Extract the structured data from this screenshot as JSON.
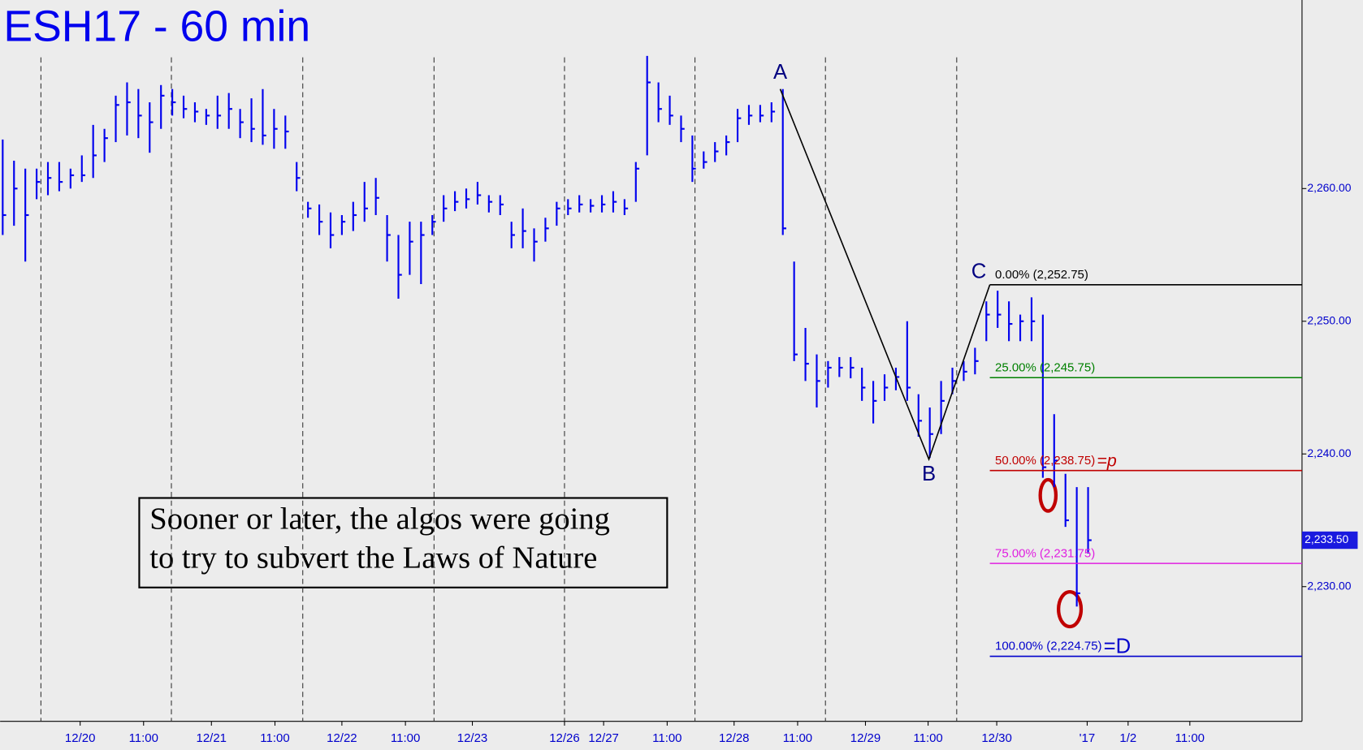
{
  "chart_data": {
    "type": "ohlc",
    "title": "ESH17 - 60 min",
    "annotation": [
      "Sooner or later, the algos were going",
      "to try to subvert the Laws of Nature"
    ],
    "color": "#0000ee",
    "xlim": [
      -0.2308,
      114.923
    ],
    "ylim": [
      2219.85,
      2274.21
    ],
    "yticks": [
      {
        "value": 2260,
        "label": "2,260.00"
      },
      {
        "value": 2250,
        "label": "2,250.00"
      },
      {
        "value": 2240,
        "label": "2,240.00"
      },
      {
        "value": 2230,
        "label": "2,230.00"
      }
    ],
    "xticks": [
      {
        "value": 6.85,
        "label": "12/20"
      },
      {
        "value": 12.46,
        "label": "11:00"
      },
      {
        "value": 18.46,
        "label": "12/21"
      },
      {
        "value": 24.08,
        "label": "11:00"
      },
      {
        "value": 30,
        "label": "12/22"
      },
      {
        "value": 35.62,
        "label": "11:00"
      },
      {
        "value": 41.54,
        "label": "12/23"
      },
      {
        "value": 49.69,
        "label": "12/26"
      },
      {
        "value": 53.15,
        "label": "12/27"
      },
      {
        "value": 58.77,
        "label": "11:00"
      },
      {
        "value": 64.69,
        "label": "12/28"
      },
      {
        "value": 70.31,
        "label": "11:00"
      },
      {
        "value": 76.31,
        "label": "12/29"
      },
      {
        "value": 81.85,
        "label": "11:00"
      },
      {
        "value": 87.92,
        "label": "12/30"
      },
      {
        "value": 95.92,
        "label": "'17"
      },
      {
        "value": 99.54,
        "label": "1/2"
      },
      {
        "value": 105,
        "label": "11:00"
      }
    ],
    "day_lines": [
      3.38,
      14.92,
      26.54,
      38.15,
      49.69,
      61.23,
      72.77,
      84.38
    ],
    "high": [
      2263.7,
      2262.1,
      2261.5,
      2261.5,
      2262,
      2262,
      2261.5,
      2262.5,
      2264.8,
      2264.5,
      2267,
      2268,
      2267.5,
      2266.5,
      2267.8,
      2267.5,
      2267,
      2266.5,
      2266,
      2267,
      2267.2,
      2266,
      2266.8,
      2267.5,
      2266,
      2265.5,
      2262,
      2259,
      2258.8,
      2258.2,
      2258,
      2259,
      2260.5,
      2260.8,
      2258,
      2256.5,
      2257.5,
      2257.5,
      2258,
      2259.5,
      2259.8,
      2260,
      2260.5,
      2259.5,
      2259.5,
      2257.5,
      2258.5,
      2257,
      2257.8,
      2259,
      2259.2,
      2259.5,
      2259.2,
      2259.5,
      2259.8,
      2259.2,
      2262,
      2270,
      2268,
      2267,
      2265.5,
      2264,
      2262.8,
      2263.5,
      2264,
      2266,
      2266.3,
      2266.3,
      2266.5,
      2267.5,
      2254.5,
      2249.5,
      2247.5,
      2247,
      2247.3,
      2247.3,
      2246.5,
      2245.5,
      2246,
      2246.5,
      2250,
      2244.5,
      2243.5,
      2245.5,
      2246.5,
      2247,
      2248,
      2251.5,
      2252.3,
      2251.5,
      2250.5,
      2251.8,
      2250.5,
      2243,
      2238.5,
      2237.5,
      2237.5
    ],
    "low": [
      2256.5,
      2257.2,
      2254.5,
      2259.2,
      2259.5,
      2259.8,
      2260,
      2260.5,
      2260.8,
      2262,
      2263.5,
      2264,
      2263.8,
      2262.7,
      2264.5,
      2265.5,
      2265.3,
      2265,
      2264.8,
      2264.5,
      2264.5,
      2263.8,
      2263.5,
      2263.3,
      2263,
      2263,
      2259.8,
      2257.8,
      2256.5,
      2255.5,
      2256.5,
      2256.8,
      2257.5,
      2258,
      2254.5,
      2251.7,
      2253.5,
      2252.8,
      2256.5,
      2257.5,
      2258.3,
      2258.5,
      2258.8,
      2258.2,
      2258,
      2255.5,
      2255.5,
      2254.5,
      2256,
      2257.2,
      2258,
      2258.2,
      2258.2,
      2258.2,
      2258.2,
      2258,
      2259,
      2262.5,
      2265,
      2264.8,
      2263.5,
      2260.5,
      2261.5,
      2262,
      2262.5,
      2263.5,
      2264.8,
      2265,
      2265,
      2256.5,
      2247,
      2245.5,
      2243.5,
      2245,
      2245.8,
      2245.7,
      2244,
      2242.3,
      2244,
      2244.8,
      2244,
      2241.3,
      2239.7,
      2241.5,
      2244.5,
      2245.5,
      2246,
      2248.5,
      2249.5,
      2248.5,
      2248.5,
      2248.5,
      2238.2,
      2237.5,
      2234.5,
      2228.5,
      2232.5
    ],
    "close": [
      2258,
      2260,
      2258,
      2260.5,
      2260.8,
      2260.5,
      2261,
      2261,
      2262.5,
      2263.8,
      2266.3,
      2266.5,
      2265.5,
      2265,
      2267,
      2266.5,
      2266,
      2265.8,
      2265.5,
      2265.5,
      2266,
      2265,
      2264.5,
      2264,
      2264.5,
      2264.3,
      2260.8,
      2258.5,
      2257.5,
      2256.5,
      2257.5,
      2258,
      2258.5,
      2259.3,
      2256.5,
      2253.5,
      2256,
      2256.5,
      2257.5,
      2258.5,
      2259,
      2259.2,
      2259.5,
      2259,
      2258.8,
      2256.5,
      2256.8,
      2256,
      2257,
      2258.5,
      2258.5,
      2258.8,
      2258.7,
      2258.8,
      2259,
      2258.5,
      2261.5,
      2268,
      2266,
      2265.5,
      2264.5,
      2261.5,
      2262,
      2262.8,
      2263.5,
      2265.3,
      2265.5,
      2265.5,
      2265.8,
      2257,
      2247.5,
      2246.8,
      2245.5,
      2246.5,
      2246.5,
      2246.5,
      2245,
      2244,
      2245,
      2245.8,
      2245,
      2242.5,
      2241.5,
      2244,
      2245.5,
      2246.2,
      2247,
      2250.5,
      2250.5,
      2249.8,
      2250,
      2250,
      2239,
      2239.5,
      2235,
      2229.5,
      2233.5
    ],
    "pattern": [
      {
        "label": "A",
        "x": 68.77,
        "y": 2267.5
      },
      {
        "label": "B",
        "x": 81.92,
        "y": 2239.6
      },
      {
        "label": "C",
        "x": 87.31,
        "y": 2252.75
      }
    ],
    "levels": [
      {
        "label": "0.00% (2,252.75)",
        "value": 2252.75,
        "color": "#000000"
      },
      {
        "label": "25.00% (2,245.75)",
        "value": 2245.75,
        "color": "#008000"
      },
      {
        "label": "50.00% (2,238.75)",
        "value": 2238.75,
        "color": "#c00000",
        "suffix": "=p"
      },
      {
        "label": "75.00% (2,231.75)",
        "value": 2231.75,
        "color": "#e020e0"
      },
      {
        "label": "100.00% (2,224.75)",
        "value": 2224.75,
        "color": "#0000cc",
        "suffix": "=D"
      }
    ],
    "last_price": {
      "value": 2233.5,
      "label": "2,233.50"
    }
  }
}
